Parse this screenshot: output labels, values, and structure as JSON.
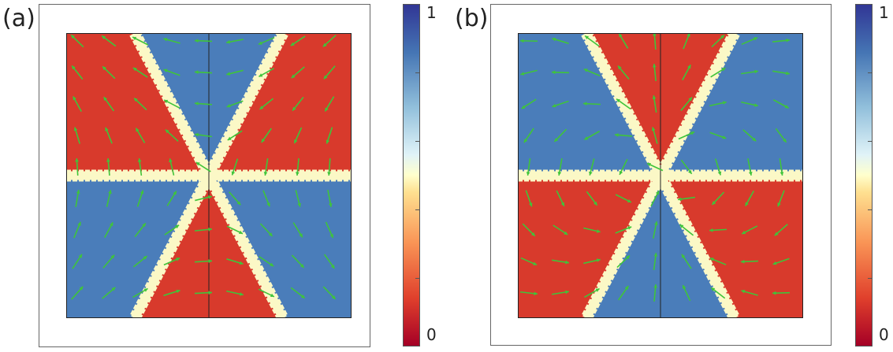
{
  "panels": [
    {
      "label": "(a)",
      "variant": "a"
    },
    {
      "label": "(b)",
      "variant": "b"
    }
  ],
  "colorbar": {
    "max_label": "1",
    "min_label": "0"
  },
  "colors": {
    "red_domain": "#d83a2c",
    "blue_domain": "#4a7dba",
    "wall": "#fbf8c6",
    "arrow": "#3fc43a"
  }
}
